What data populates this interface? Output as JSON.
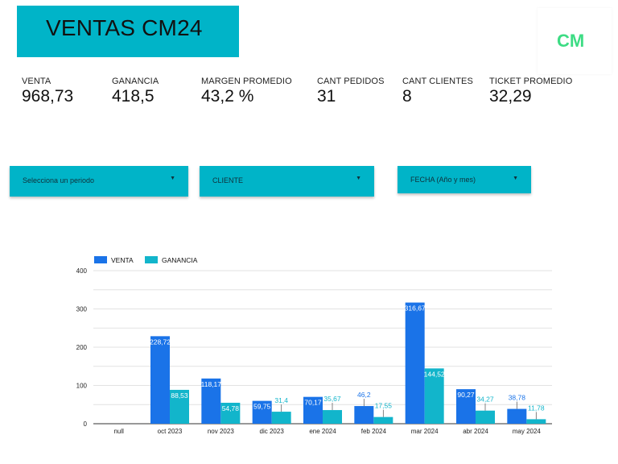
{
  "header": {
    "title": "VENTAS CM24",
    "logo_text": "CM"
  },
  "kpis": [
    {
      "label": "VENTA",
      "value": "968,73"
    },
    {
      "label": "GANANCIA",
      "value": "418,5"
    },
    {
      "label": "MARGEN PROMEDIO",
      "value": "43,2 %"
    },
    {
      "label": "CANT PEDIDOS",
      "value": "31"
    },
    {
      "label": "CANT CLIENTES",
      "value": "8"
    },
    {
      "label": "TICKET PROMEDIO",
      "value": "32,29"
    }
  ],
  "filters": [
    {
      "label": "Selecciona un periodo"
    },
    {
      "label": "CLIENTE"
    },
    {
      "label": "FECHA (Año y mes)"
    }
  ],
  "colors": {
    "accent": "#00b4c8",
    "venta": "#1a73e8",
    "ganancia": "#12b5cb",
    "logo": "#3ddc84"
  },
  "chart_data": {
    "type": "bar",
    "title": "",
    "xlabel": "",
    "ylabel": "",
    "ylim": [
      0,
      400
    ],
    "yticks": [
      0,
      100,
      200,
      300,
      400
    ],
    "categories": [
      "null",
      "oct 2023",
      "nov 2023",
      "dic 2023",
      "ene 2024",
      "feb 2024",
      "mar 2024",
      "abr 2024",
      "may 2024"
    ],
    "series": [
      {
        "name": "VENTA",
        "values": [
          null,
          228.72,
          118.17,
          59.75,
          70.17,
          46.2,
          316.67,
          90.27,
          38.78
        ],
        "labels": [
          "",
          "228,72",
          "118,17",
          "59,75",
          "70,17",
          "46,2",
          "316,67",
          "90,27",
          "38,78"
        ]
      },
      {
        "name": "GANANCIA",
        "values": [
          null,
          88.53,
          54.78,
          31.4,
          35.67,
          17.55,
          144.52,
          34.27,
          11.78
        ],
        "labels": [
          "",
          "88,53",
          "54,78",
          "31,4",
          "35,67",
          "17,55",
          "144,52",
          "34,27",
          "11,78"
        ]
      }
    ],
    "legend_position": "top-left",
    "grid": true
  }
}
